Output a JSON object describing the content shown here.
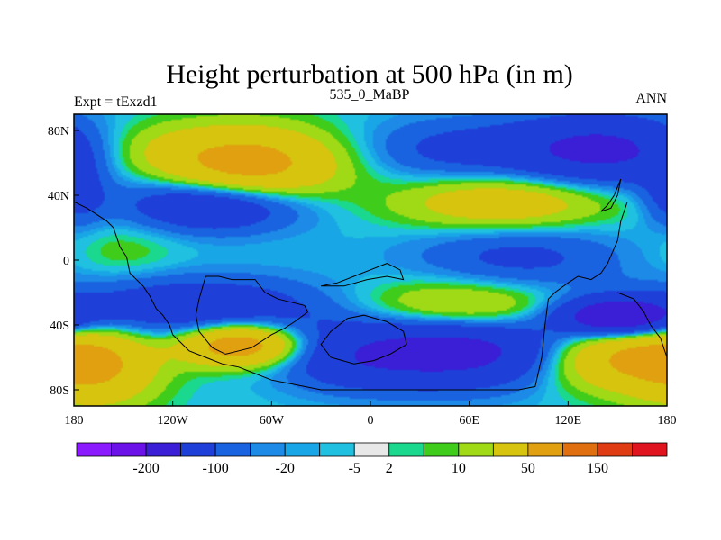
{
  "chart_data": {
    "type": "heatmap",
    "title": "Height perturbation at 500 hPa (in m)",
    "left_label": "Expt = tExzd1",
    "center_label": "535_0_MaBP",
    "right_label": "ANN",
    "xlim": [
      -180,
      180
    ],
    "ylim": [
      -90,
      90
    ],
    "x_ticks": [
      {
        "value": -180,
        "label": "180"
      },
      {
        "value": -120,
        "label": "120W"
      },
      {
        "value": -60,
        "label": "60W"
      },
      {
        "value": 0,
        "label": "0"
      },
      {
        "value": 60,
        "label": "60E"
      },
      {
        "value": 120,
        "label": "120E"
      },
      {
        "value": 180,
        "label": "180"
      }
    ],
    "y_ticks": [
      {
        "value": 80,
        "label": "80N"
      },
      {
        "value": 40,
        "label": "40N"
      },
      {
        "value": 0,
        "label": "0"
      },
      {
        "value": -40,
        "label": "40S"
      },
      {
        "value": -80,
        "label": "80S"
      }
    ],
    "colorbar": {
      "colors": [
        "#8c1aff",
        "#6a12e8",
        "#3a1fd6",
        "#1f3fd9",
        "#1a63e0",
        "#1c8ae6",
        "#19a6e6",
        "#1fc0e0",
        "#e8e8e8",
        "#1ad98f",
        "#40cc1a",
        "#a0d916",
        "#d6c40f",
        "#e0a00f",
        "#e0700f",
        "#e03c14",
        "#e0141e"
      ],
      "labels": [
        {
          "boundary": 2,
          "text": "-200"
        },
        {
          "boundary": 4,
          "text": "-100"
        },
        {
          "boundary": 6,
          "text": "-20"
        },
        {
          "boundary": 8,
          "text": "-5"
        },
        {
          "boundary": 9,
          "text": "2"
        },
        {
          "boundary": 11,
          "text": "10"
        },
        {
          "boundary": 13,
          "text": "50"
        },
        {
          "boundary": 15,
          "text": "150"
        }
      ]
    },
    "field_anomalies": [
      {
        "lon": -75,
        "lat": 58,
        "slon": 38,
        "slat": 16,
        "amp": 70
      },
      {
        "lon": -140,
        "lat": 70,
        "slon": 30,
        "slat": 12,
        "amp": 14
      },
      {
        "lon": -95,
        "lat": 35,
        "slon": 38,
        "slat": 12,
        "amp": -55
      },
      {
        "lon": -178,
        "lat": 40,
        "slon": 12,
        "slat": 14,
        "amp": -25
      },
      {
        "lon": 45,
        "lat": 68,
        "slon": 38,
        "slat": 14,
        "amp": -22
      },
      {
        "lon": 140,
        "lat": 68,
        "slon": 42,
        "slat": 15,
        "amp": -60
      },
      {
        "lon": 80,
        "lat": 35,
        "slon": 45,
        "slat": 12,
        "amp": 40
      },
      {
        "lon": -150,
        "lat": 5,
        "slon": 25,
        "slat": 14,
        "amp": 10
      },
      {
        "lon": 90,
        "lat": 2,
        "slon": 45,
        "slat": 16,
        "amp": -25
      },
      {
        "lon": -110,
        "lat": -30,
        "slon": 60,
        "slat": 14,
        "amp": -40
      },
      {
        "lon": -80,
        "lat": -52,
        "slon": 25,
        "slat": 9,
        "amp": 80
      },
      {
        "lon": -165,
        "lat": -65,
        "slon": 25,
        "slat": 18,
        "amp": 45
      },
      {
        "lon": 50,
        "lat": -55,
        "slon": 55,
        "slat": 16,
        "amp": -70
      },
      {
        "lon": 55,
        "lat": -30,
        "slon": 45,
        "slat": 12,
        "amp": 40
      },
      {
        "lon": 150,
        "lat": -35,
        "slon": 25,
        "slat": 8,
        "amp": -90
      },
      {
        "lon": 150,
        "lat": -60,
        "slon": 35,
        "slat": 14,
        "amp": 60
      },
      {
        "lon": -15,
        "lat": -65,
        "slon": 28,
        "slat": 12,
        "amp": -15
      },
      {
        "lon": 0,
        "lat": 25,
        "slon": 40,
        "slat": 25,
        "amp": -1
      }
    ],
    "coastlines": [
      [
        [
          -180,
          36
        ],
        [
          -172,
          32
        ],
        [
          -166,
          28
        ],
        [
          -160,
          24
        ],
        [
          -156,
          20
        ],
        [
          -154,
          14
        ],
        [
          -152,
          8
        ],
        [
          -148,
          2
        ],
        [
          -146,
          -8
        ],
        [
          -138,
          -16
        ],
        [
          -134,
          -22
        ],
        [
          -130,
          -30
        ],
        [
          -126,
          -34
        ],
        [
          -122,
          -40
        ],
        [
          -120,
          -46
        ],
        [
          -116,
          -50
        ],
        [
          -110,
          -56
        ],
        [
          -100,
          -60
        ],
        [
          -90,
          -64
        ],
        [
          -80,
          -66
        ],
        [
          -70,
          -70
        ],
        [
          -60,
          -74
        ],
        [
          -50,
          -76
        ],
        [
          -40,
          -78
        ],
        [
          -30,
          -80
        ],
        [
          -10,
          -80
        ],
        [
          10,
          -80
        ],
        [
          30,
          -80
        ],
        [
          60,
          -80
        ],
        [
          90,
          -80
        ],
        [
          100,
          -78
        ],
        [
          104,
          -60
        ],
        [
          106,
          -40
        ],
        [
          108,
          -24
        ],
        [
          112,
          -20
        ],
        [
          120,
          -14
        ],
        [
          126,
          -10
        ],
        [
          134,
          -12
        ],
        [
          140,
          -8
        ],
        [
          144,
          -2
        ],
        [
          150,
          12
        ],
        [
          152,
          24
        ],
        [
          154,
          30
        ],
        [
          156,
          36
        ]
      ],
      [
        [
          -100,
          -10
        ],
        [
          -92,
          -10
        ],
        [
          -84,
          -12
        ],
        [
          -70,
          -12
        ],
        [
          -64,
          -20
        ],
        [
          -56,
          -24
        ],
        [
          -48,
          -26
        ],
        [
          -40,
          -28
        ],
        [
          -38,
          -32
        ],
        [
          -46,
          -38
        ],
        [
          -52,
          -42
        ],
        [
          -60,
          -46
        ],
        [
          -66,
          -50
        ],
        [
          -72,
          -54
        ],
        [
          -80,
          -56
        ],
        [
          -88,
          -58
        ],
        [
          -96,
          -54
        ],
        [
          -104,
          -44
        ],
        [
          -106,
          -34
        ],
        [
          -104,
          -24
        ],
        [
          -100,
          -10
        ]
      ],
      [
        [
          -14,
          -36
        ],
        [
          -4,
          -34
        ],
        [
          10,
          -38
        ],
        [
          20,
          -44
        ],
        [
          22,
          -52
        ],
        [
          12,
          -58
        ],
        [
          2,
          -62
        ],
        [
          -10,
          -64
        ],
        [
          -24,
          -60
        ],
        [
          -30,
          -52
        ],
        [
          -24,
          -44
        ],
        [
          -14,
          -36
        ]
      ],
      [
        [
          -30,
          -16
        ],
        [
          -20,
          -14
        ],
        [
          -10,
          -10
        ],
        [
          0,
          -6
        ],
        [
          10,
          -2
        ],
        [
          18,
          -6
        ],
        [
          20,
          -12
        ],
        [
          10,
          -10
        ],
        [
          -2,
          -12
        ],
        [
          -16,
          -16
        ],
        [
          -30,
          -16
        ]
      ],
      [
        [
          140,
          30
        ],
        [
          146,
          32
        ],
        [
          150,
          40
        ],
        [
          152,
          50
        ],
        [
          148,
          40
        ],
        [
          144,
          34
        ],
        [
          140,
          30
        ]
      ],
      [
        [
          150,
          -20
        ],
        [
          160,
          -24
        ],
        [
          166,
          -32
        ],
        [
          170,
          -40
        ],
        [
          176,
          -48
        ],
        [
          180,
          -60
        ]
      ]
    ]
  }
}
